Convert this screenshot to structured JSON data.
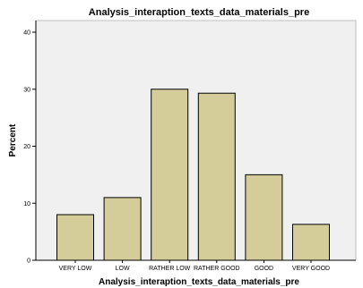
{
  "chart_data": {
    "type": "bar",
    "title": "Analysis_interaption_texts_data_materials_pre",
    "xlabel": "Analysis_interaption_texts_data_materials_pre",
    "ylabel": "Percent",
    "categories": [
      "VERY LOW",
      "LOW",
      "RATHER LOW",
      "RATHER GOOD",
      "GOOD",
      "VERY GOOD"
    ],
    "values": [
      8,
      11,
      30,
      29.3,
      15,
      6.3
    ],
    "ylim": [
      0,
      40
    ],
    "yticks": [
      "0",
      "10",
      "20",
      "30",
      "40"
    ],
    "grid": false,
    "bar_color": "#d4cd99",
    "plot_background": "#f0f0f0"
  }
}
